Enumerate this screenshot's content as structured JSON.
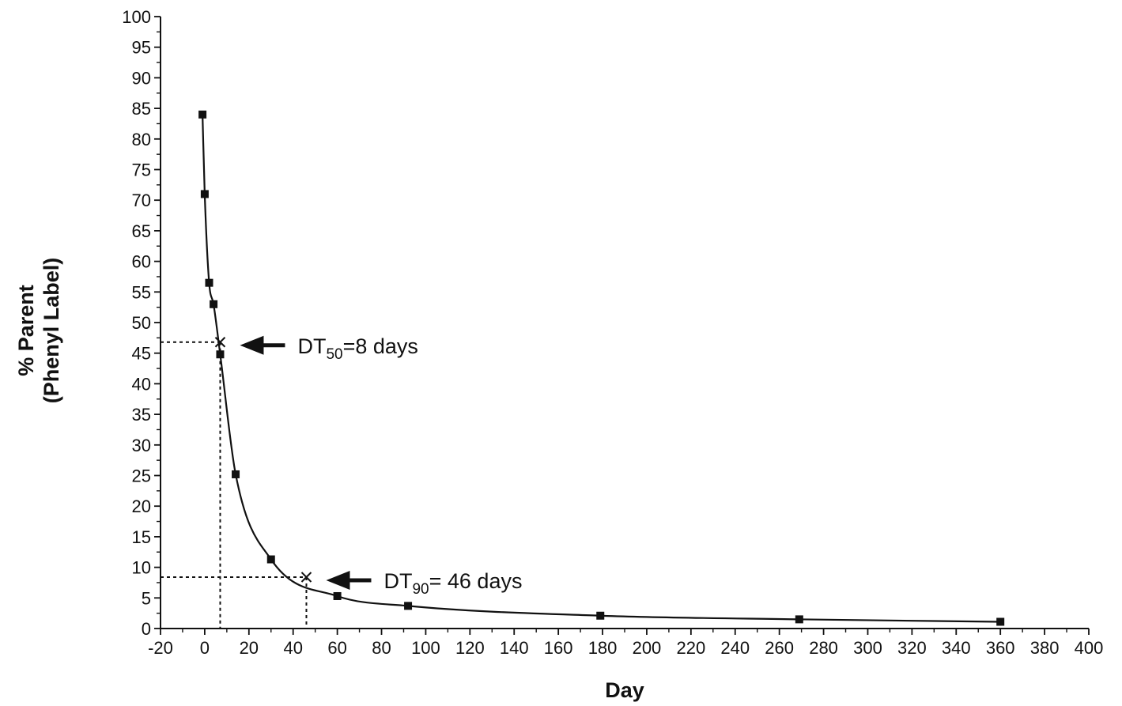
{
  "chart_data": {
    "type": "line",
    "xlabel": "Day",
    "ylabel_line1": "% Parent",
    "ylabel_line2": "(Phenyl Label)",
    "xlim": [
      -20,
      400
    ],
    "ylim": [
      0,
      100
    ],
    "x_ticks": [
      -20,
      0,
      20,
      40,
      60,
      80,
      100,
      120,
      140,
      160,
      180,
      200,
      220,
      240,
      260,
      280,
      300,
      320,
      340,
      360,
      380,
      400
    ],
    "y_ticks": [
      0,
      5,
      10,
      15,
      20,
      25,
      30,
      35,
      40,
      45,
      50,
      55,
      60,
      65,
      70,
      75,
      80,
      85,
      90,
      95,
      100
    ],
    "series": [
      {
        "marker": "square",
        "color": "#111111",
        "x": [
          -1,
          0,
          2,
          4,
          7,
          14,
          30,
          60,
          92,
          179,
          269,
          360
        ],
        "y": [
          84.0,
          71.0,
          56.5,
          53.0,
          44.8,
          25.2,
          11.3,
          5.3,
          3.7,
          2.1,
          1.5,
          1.1
        ]
      }
    ],
    "annotations": [
      {
        "label_main": "DT",
        "label_sub": "50",
        "label_rest": "=8 days",
        "x": 7,
        "y": 46.8
      },
      {
        "label_main": "DT",
        "label_sub": "90",
        "label_rest": "= 46 days",
        "x": 46,
        "y": 8.4
      }
    ],
    "grid": false,
    "legend": "none"
  }
}
